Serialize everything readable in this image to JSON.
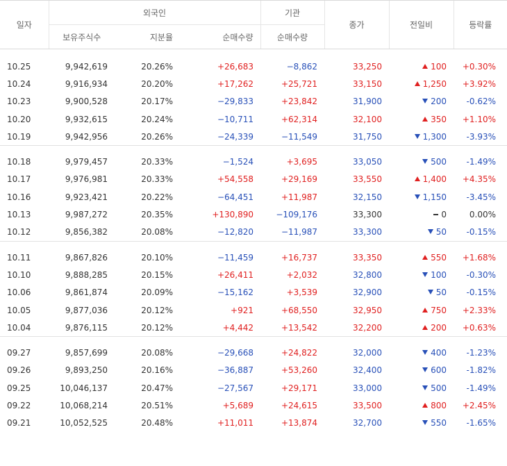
{
  "headers": {
    "date": "일자",
    "foreign": "외국인",
    "institution": "기관",
    "close": "종가",
    "change": "전일비",
    "rate": "등락률",
    "holdings": "보유주식수",
    "ratio": "지분율",
    "foreign_net": "순매수량",
    "inst_net": "순매수량"
  },
  "groups": [
    [
      {
        "date": "10.25",
        "holdings": "9,942,619",
        "ratio": "20.26%",
        "fnet": "+26,683",
        "inet": "−8,862",
        "close": "33,250",
        "dir": "up",
        "change": "100",
        "rate": "+0.30%"
      },
      {
        "date": "10.24",
        "holdings": "9,916,934",
        "ratio": "20.20%",
        "fnet": "+17,262",
        "inet": "+25,721",
        "close": "33,150",
        "dir": "up",
        "change": "1,250",
        "rate": "+3.92%"
      },
      {
        "date": "10.23",
        "holdings": "9,900,528",
        "ratio": "20.17%",
        "fnet": "−29,833",
        "inet": "+23,842",
        "close": "31,900",
        "dir": "dn",
        "change": "200",
        "rate": "-0.62%"
      },
      {
        "date": "10.20",
        "holdings": "9,932,615",
        "ratio": "20.24%",
        "fnet": "−10,711",
        "inet": "+62,314",
        "close": "32,100",
        "dir": "up",
        "change": "350",
        "rate": "+1.10%"
      },
      {
        "date": "10.19",
        "holdings": "9,942,956",
        "ratio": "20.26%",
        "fnet": "−24,339",
        "inet": "−11,549",
        "close": "31,750",
        "dir": "dn",
        "change": "1,300",
        "rate": "-3.93%"
      }
    ],
    [
      {
        "date": "10.18",
        "holdings": "9,979,457",
        "ratio": "20.33%",
        "fnet": "−1,524",
        "inet": "+3,695",
        "close": "33,050",
        "dir": "dn",
        "change": "500",
        "rate": "-1.49%"
      },
      {
        "date": "10.17",
        "holdings": "9,976,981",
        "ratio": "20.33%",
        "fnet": "+54,558",
        "inet": "+29,169",
        "close": "33,550",
        "dir": "up",
        "change": "1,400",
        "rate": "+4.35%"
      },
      {
        "date": "10.16",
        "holdings": "9,923,421",
        "ratio": "20.22%",
        "fnet": "−64,451",
        "inet": "+11,987",
        "close": "32,150",
        "dir": "dn",
        "change": "1,150",
        "rate": "-3.45%"
      },
      {
        "date": "10.13",
        "holdings": "9,987,272",
        "ratio": "20.35%",
        "fnet": "+130,890",
        "inet": "−109,176",
        "close": "33,300",
        "dir": "eq",
        "change": "0",
        "rate": "0.00%"
      },
      {
        "date": "10.12",
        "holdings": "9,856,382",
        "ratio": "20.08%",
        "fnet": "−12,820",
        "inet": "−11,987",
        "close": "33,300",
        "dir": "dn",
        "change": "50",
        "rate": "-0.15%"
      }
    ],
    [
      {
        "date": "10.11",
        "holdings": "9,867,826",
        "ratio": "20.10%",
        "fnet": "−11,459",
        "inet": "+16,737",
        "close": "33,350",
        "dir": "up",
        "change": "550",
        "rate": "+1.68%"
      },
      {
        "date": "10.10",
        "holdings": "9,888,285",
        "ratio": "20.15%",
        "fnet": "+26,411",
        "inet": "+2,032",
        "close": "32,800",
        "dir": "dn",
        "change": "100",
        "rate": "-0.30%"
      },
      {
        "date": "10.06",
        "holdings": "9,861,874",
        "ratio": "20.09%",
        "fnet": "−15,162",
        "inet": "+3,539",
        "close": "32,900",
        "dir": "dn",
        "change": "50",
        "rate": "-0.15%"
      },
      {
        "date": "10.05",
        "holdings": "9,877,036",
        "ratio": "20.12%",
        "fnet": "+921",
        "inet": "+68,550",
        "close": "32,950",
        "dir": "up",
        "change": "750",
        "rate": "+2.33%"
      },
      {
        "date": "10.04",
        "holdings": "9,876,115",
        "ratio": "20.12%",
        "fnet": "+4,442",
        "inet": "+13,542",
        "close": "32,200",
        "dir": "up",
        "change": "200",
        "rate": "+0.63%"
      }
    ],
    [
      {
        "date": "09.27",
        "holdings": "9,857,699",
        "ratio": "20.08%",
        "fnet": "−29,668",
        "inet": "+24,822",
        "close": "32,000",
        "dir": "dn",
        "change": "400",
        "rate": "-1.23%"
      },
      {
        "date": "09.26",
        "holdings": "9,893,250",
        "ratio": "20.16%",
        "fnet": "−36,887",
        "inet": "+53,260",
        "close": "32,400",
        "dir": "dn",
        "change": "600",
        "rate": "-1.82%"
      },
      {
        "date": "09.25",
        "holdings": "10,046,137",
        "ratio": "20.47%",
        "fnet": "−27,567",
        "inet": "+29,171",
        "close": "33,000",
        "dir": "dn",
        "change": "500",
        "rate": "-1.49%"
      },
      {
        "date": "09.22",
        "holdings": "10,068,214",
        "ratio": "20.51%",
        "fnet": "+5,689",
        "inet": "+24,615",
        "close": "33,500",
        "dir": "up",
        "change": "800",
        "rate": "+2.45%"
      },
      {
        "date": "09.21",
        "holdings": "10,052,525",
        "ratio": "20.48%",
        "fnet": "+11,011",
        "inet": "+13,874",
        "close": "32,700",
        "dir": "dn",
        "change": "550",
        "rate": "-1.65%"
      }
    ]
  ]
}
